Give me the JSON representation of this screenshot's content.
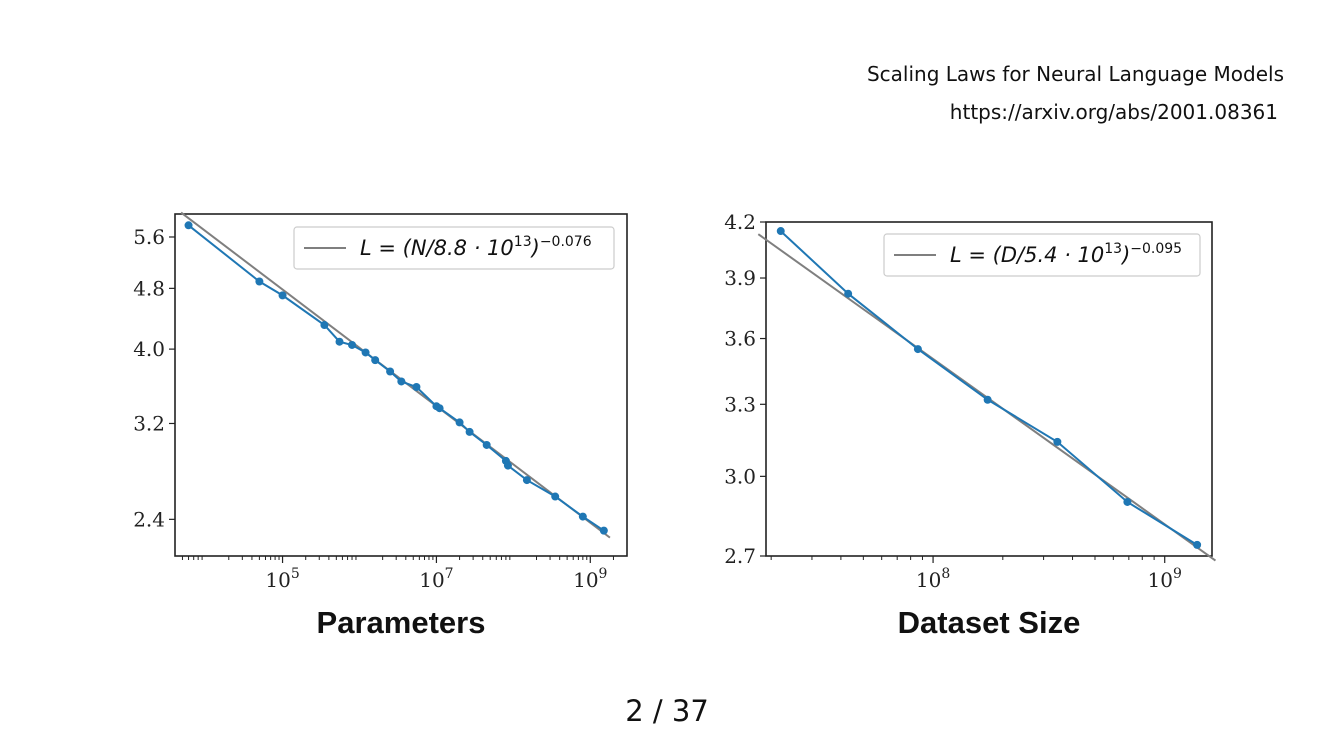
{
  "header": {
    "paper_title": "Scaling Laws for Neural Language Models",
    "paper_url": "https://arxiv.org/abs/2001.08361"
  },
  "pagination": {
    "current": "2",
    "separator": "/",
    "total": "37"
  },
  "colors": {
    "data_series": "#1f77b4",
    "fit_line": "#7f7f7f"
  },
  "chart_data": [
    {
      "type": "line",
      "xlabel": "Parameters",
      "ylabel": "",
      "x_scale": "log",
      "y_scale": "log",
      "xlim": [
        4000,
        3000000000
      ],
      "ylim": [
        2.15,
        6.0
      ],
      "x_ticks": [
        {
          "value": 100000,
          "base": "10",
          "exp": "5"
        },
        {
          "value": 10000000,
          "base": "10",
          "exp": "7"
        },
        {
          "value": 1000000000,
          "base": "10",
          "exp": "9"
        }
      ],
      "y_ticks": [
        "5.6",
        "4.8",
        "4.0",
        "3.2",
        "2.4"
      ],
      "legend": {
        "placement": "top-right",
        "pre": "L = (N/8.8 · 10",
        "sup1": "13",
        "post": ")",
        "sup2": "−0.076"
      },
      "fit": {
        "scale": 88000000000000.0,
        "exponent": -0.076
      },
      "series": [
        {
          "x": [
            6000,
            50000,
            100000,
            350000,
            550000,
            800000,
            1200000,
            1600000,
            2500000,
            3500000,
            5500000,
            10000000,
            11000000,
            20000000,
            27000000,
            45000000,
            80000000,
            85000000,
            150000000,
            350000000,
            800000000,
            1500000000
          ],
          "y": [
            5.8,
            4.9,
            4.7,
            4.3,
            4.09,
            4.05,
            3.96,
            3.87,
            3.74,
            3.63,
            3.57,
            3.37,
            3.35,
            3.21,
            3.12,
            3.0,
            2.86,
            2.82,
            2.7,
            2.57,
            2.42,
            2.32
          ]
        }
      ]
    },
    {
      "type": "line",
      "xlabel": "Dataset Size",
      "ylabel": "",
      "x_scale": "log",
      "y_scale": "log",
      "xlim": [
        19000000,
        1600000000
      ],
      "ylim": [
        2.7,
        4.2
      ],
      "x_ticks": [
        {
          "value": 100000000,
          "base": "10",
          "exp": "8"
        },
        {
          "value": 1000000000,
          "base": "10",
          "exp": "9"
        }
      ],
      "y_ticks": [
        "4.2",
        "3.9",
        "3.6",
        "3.3",
        "3.0",
        "2.7"
      ],
      "legend": {
        "placement": "top-right",
        "pre": "L = (D/5.4 · 10",
        "sup1": "13",
        "post": ")",
        "sup2": "−0.095"
      },
      "fit": {
        "scale": 54000000000000.0,
        "exponent": -0.095
      },
      "series": [
        {
          "x": [
            22000000,
            43000000,
            86000000,
            172000000,
            344000000,
            690000000,
            1380000000
          ],
          "y": [
            4.15,
            3.82,
            3.55,
            3.32,
            3.14,
            2.9,
            2.74
          ]
        }
      ]
    }
  ]
}
